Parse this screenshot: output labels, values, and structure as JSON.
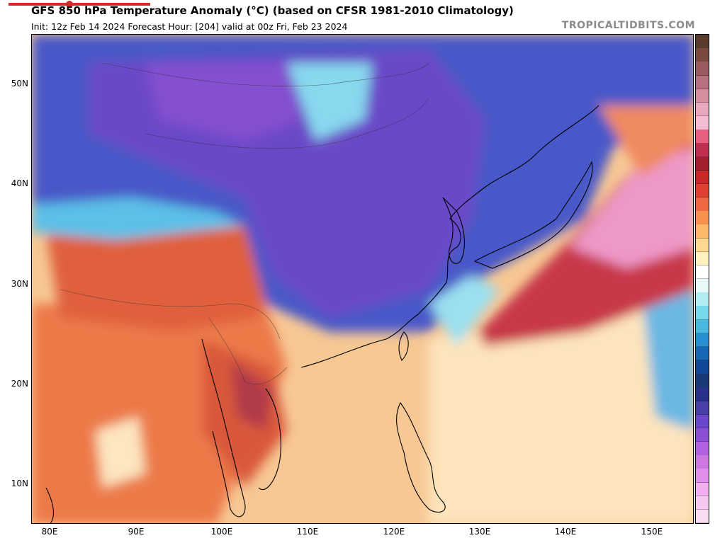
{
  "header": {
    "title": "GFS 850 hPa Temperature Anomaly (°C) (based on CFSR 1981-2010 Climatology)",
    "subtitle": "Init: 12z Feb 14 2024   Forecast Hour: [204]   valid at 00z Fri, Feb 23 2024",
    "brand": "TROPICALTIDBITS.COM"
  },
  "axes": {
    "lat_labels": [
      "50N",
      "40N",
      "30N",
      "20N",
      "10N"
    ],
    "lon_labels": [
      "80E",
      "90E",
      "100E",
      "110E",
      "120E",
      "130E",
      "140E",
      "150E"
    ]
  },
  "colorbar": {
    "colors": [
      "#5a3a2a",
      "#7a4a40",
      "#9a5a60",
      "#b8707e",
      "#d4909e",
      "#e8a8be",
      "#f4bcd4",
      "#e86080",
      "#c03050",
      "#a02030",
      "#c82828",
      "#e04030",
      "#f06840",
      "#f89050",
      "#fcb868",
      "#fed890",
      "#fff0c0",
      "#ffffff",
      "#e8f8f8",
      "#b0ecf0",
      "#78d8ec",
      "#48b8e0",
      "#2890d0",
      "#1868b8",
      "#104898",
      "#183878",
      "#28308a",
      "#4840a8",
      "#6848c8",
      "#8c50d8",
      "#b060e0",
      "#cc78e0",
      "#e090e8",
      "#f0b0f0",
      "#f4c8f0",
      "#fadcf4"
    ]
  },
  "map": {
    "region": "East Asia",
    "colors": {
      "cold_strong": "#5a3fbf",
      "cold": "#3a5cc8",
      "cool": "#62c6e8",
      "neutral": "#fff4d8",
      "warm": "#f5b47c",
      "hot": "#e8623c",
      "very_hot": "#b83a4a",
      "pink": "#f0a0c8"
    }
  }
}
